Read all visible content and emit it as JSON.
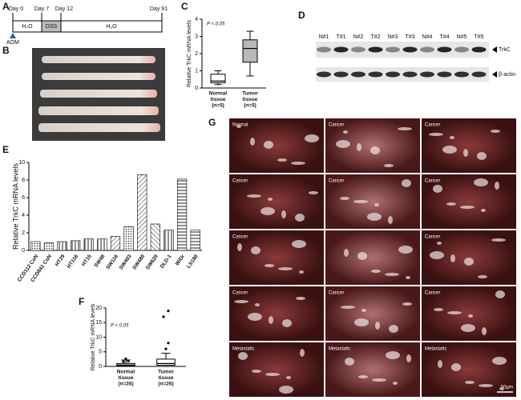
{
  "figure": {
    "panel_labels": [
      "A",
      "B",
      "C",
      "D",
      "E",
      "F",
      "G"
    ],
    "timeline": {
      "days": [
        "Day 0",
        "Day 7",
        "Day 12",
        "Day 91"
      ],
      "segments": [
        "H₂O",
        "DSS",
        "H₂O"
      ],
      "treatment": "AOM"
    },
    "blot": {
      "lanes": [
        "N#1",
        "T#1",
        "N#2",
        "T#2",
        "N#3",
        "T#3",
        "N#4",
        "T#4",
        "N#5",
        "T#5"
      ],
      "bands": [
        "TrkC",
        "β-actin"
      ]
    },
    "micrographs": {
      "labels": [
        "Normal",
        "Cancer",
        "Cancer",
        "Cancer",
        "Cancer",
        "Cancer",
        "Cancer",
        null,
        "Cancer",
        "Cancer",
        "Cancer",
        "Cancer",
        "Metastatic",
        "Metastatic",
        "Metastatic"
      ],
      "scale_bar": "50μm"
    }
  },
  "chart_data": [
    {
      "type": "box",
      "ylabel": "Relative TrkC mRNA levels",
      "annotation": "P < 0.05",
      "categories": [
        [
          "Normal",
          "tissue",
          "(n=5)"
        ],
        [
          "Tumor",
          "tissue",
          "(n=5)"
        ]
      ],
      "colors": [
        "#ffffff",
        "#b8b8b8"
      ],
      "boxes": [
        {
          "min": 0.2,
          "q1": 0.3,
          "median": 0.4,
          "q3": 0.8,
          "max": 1.0,
          "outliers": []
        },
        {
          "min": 0.7,
          "q1": 1.5,
          "median": 2.3,
          "q3": 2.8,
          "max": 3.3,
          "outliers": []
        }
      ],
      "ylim": [
        0,
        4
      ],
      "yticks": [
        0,
        1,
        2,
        3,
        4
      ]
    },
    {
      "type": "bar",
      "ylabel": "Relative TrkC mRNA levels",
      "categories": [
        "CCD112 CoN",
        "CCD841 CoN",
        "HT29",
        "HT116",
        "HT15",
        "SW48",
        "SW116",
        "SW403",
        "SW480",
        "SW620",
        "DLD-1",
        "WiDr",
        "LS180"
      ],
      "values": [
        1.0,
        0.85,
        1.0,
        1.1,
        1.3,
        1.3,
        1.6,
        2.7,
        8.6,
        3.0,
        2.3,
        8.1,
        2.3
      ],
      "ylim": [
        0,
        10
      ],
      "yticks": [
        0,
        2,
        4,
        6,
        8,
        10
      ]
    },
    {
      "type": "box",
      "ylabel": "Relative TrkC mRNA levels",
      "annotation": "P < 0.05",
      "categories": [
        [
          "Normal",
          "tissue",
          "(n=26)"
        ],
        [
          "Tumor",
          "tissue",
          "(n=26)"
        ]
      ],
      "colors": [
        "#ffffff",
        "#ffffff"
      ],
      "boxes": [
        {
          "min": 0,
          "q1": 0.2,
          "median": 0.5,
          "q3": 1.0,
          "max": 2.2,
          "outliers": [
            2.6,
            1.8,
            1.6
          ]
        },
        {
          "min": 0,
          "q1": 0.4,
          "median": 1.0,
          "q3": 2.5,
          "max": 4.5,
          "outliers": [
            6,
            8,
            17,
            19
          ]
        }
      ],
      "ylim": [
        0,
        20
      ],
      "yticks": [
        0,
        5,
        10,
        15,
        20
      ]
    }
  ]
}
